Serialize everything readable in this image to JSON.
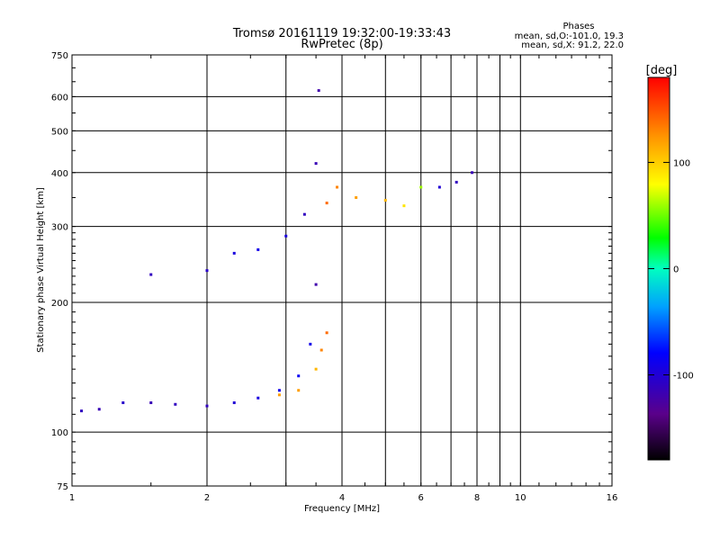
{
  "chart_data": {
    "type": "scatter",
    "title": "Tromsø 20161119 19:32:00-19:33:43",
    "subtitle": "RwPretec (8p)",
    "xlabel": "Frequency [MHz]",
    "ylabel": "Stationary phase Virtual Height [km]",
    "x_scale": "log",
    "y_scale": "log",
    "xlim": [
      1,
      16
    ],
    "ylim": [
      75,
      750
    ],
    "x_ticks": [
      1,
      2,
      4,
      6,
      8,
      10,
      16
    ],
    "x_tick_labels": [
      "1",
      "2",
      "4",
      "6",
      "8",
      "10",
      "16"
    ],
    "y_ticks": [
      75,
      100,
      200,
      300,
      400,
      500,
      600,
      750
    ],
    "y_tick_labels": [
      "75",
      "100",
      "200",
      "300",
      "400",
      "500",
      "600",
      "750"
    ],
    "grid": true,
    "phases_box": {
      "title": "Phases",
      "line1": "mean, sd,O:-101.0, 19.3",
      "line2": "mean, sd,X:  91.2, 22.0"
    },
    "colorbar": {
      "label": "[deg]",
      "range": [
        -180,
        180
      ],
      "ticks": [
        100,
        0,
        -100
      ],
      "tick_labels": [
        "100",
        "0",
        "-100"
      ]
    },
    "series": [
      {
        "values": [
          {
            "x": 1.05,
            "y": 112,
            "phase": -110
          },
          {
            "x": 1.15,
            "y": 113,
            "phase": -115
          },
          {
            "x": 1.3,
            "y": 117,
            "phase": -105
          },
          {
            "x": 1.5,
            "y": 117,
            "phase": -115
          },
          {
            "x": 1.7,
            "y": 116,
            "phase": -110
          },
          {
            "x": 2.0,
            "y": 115,
            "phase": -110
          },
          {
            "x": 2.3,
            "y": 117,
            "phase": -100
          },
          {
            "x": 2.6,
            "y": 120,
            "phase": -95
          },
          {
            "x": 2.9,
            "y": 125,
            "phase": -90
          },
          {
            "x": 3.2,
            "y": 135,
            "phase": -85
          },
          {
            "x": 3.4,
            "y": 160,
            "phase": -90
          },
          {
            "x": 3.5,
            "y": 220,
            "phase": -120
          }
        ]
      },
      {
        "values": [
          {
            "x": 1.5,
            "y": 232,
            "phase": -110
          },
          {
            "x": 2.0,
            "y": 237,
            "phase": -105
          },
          {
            "x": 2.3,
            "y": 260,
            "phase": -95
          },
          {
            "x": 2.6,
            "y": 265,
            "phase": -90
          },
          {
            "x": 3.0,
            "y": 285,
            "phase": -95
          },
          {
            "x": 3.3,
            "y": 320,
            "phase": -110
          },
          {
            "x": 3.5,
            "y": 420,
            "phase": -115
          },
          {
            "x": 3.55,
            "y": 620,
            "phase": -120
          }
        ]
      },
      {
        "values": [
          {
            "x": 2.9,
            "y": 122,
            "phase": 120
          },
          {
            "x": 3.2,
            "y": 125,
            "phase": 120
          },
          {
            "x": 3.5,
            "y": 140,
            "phase": 110
          },
          {
            "x": 3.6,
            "y": 155,
            "phase": 130
          },
          {
            "x": 3.7,
            "y": 170,
            "phase": 140
          }
        ]
      },
      {
        "values": [
          {
            "x": 3.7,
            "y": 340,
            "phase": 140
          },
          {
            "x": 3.9,
            "y": 370,
            "phase": 130
          },
          {
            "x": 4.3,
            "y": 350,
            "phase": 120
          },
          {
            "x": 5.0,
            "y": 345,
            "phase": 110
          },
          {
            "x": 5.5,
            "y": 335,
            "phase": 90
          },
          {
            "x": 6.0,
            "y": 370,
            "phase": 60
          },
          {
            "x": 6.6,
            "y": 370,
            "phase": -100
          },
          {
            "x": 7.2,
            "y": 380,
            "phase": -110
          },
          {
            "x": 7.8,
            "y": 400,
            "phase": -115
          }
        ]
      }
    ]
  }
}
